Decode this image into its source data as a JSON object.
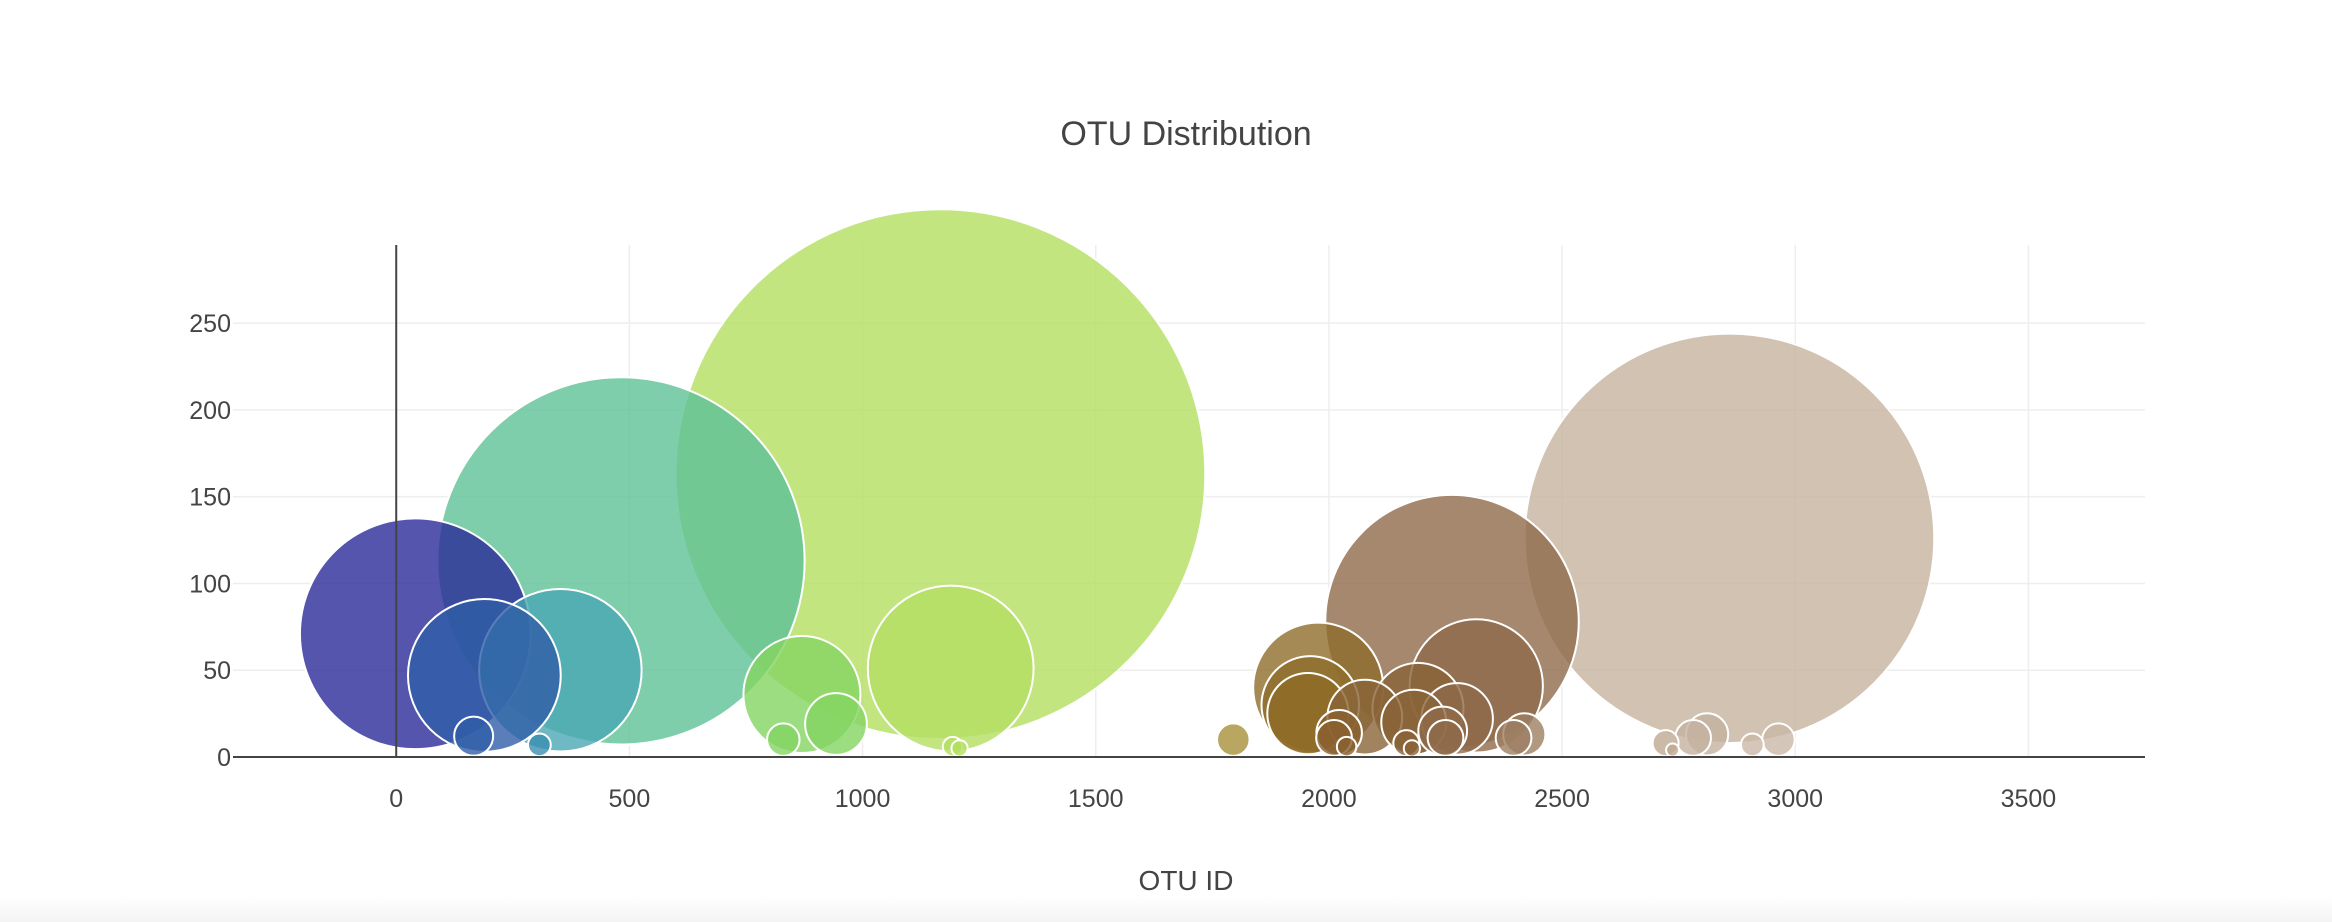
{
  "chart_data": {
    "type": "scatter",
    "marker_mode": "bubble",
    "title": "OTU Distribution",
    "xlabel": "OTU ID",
    "ylabel": "",
    "xlim": [
      -350,
      3750
    ],
    "ylim": [
      0,
      295
    ],
    "xticks": [
      0,
      500,
      1000,
      1500,
      2000,
      2500,
      3000,
      3500
    ],
    "yticks": [
      0,
      50,
      100,
      150,
      200,
      250
    ],
    "grid": true,
    "legend": "none",
    "colorscale": "Earth",
    "series": [
      {
        "points": [
          {
            "x": 41,
            "y": 71,
            "size": 71,
            "color": "#2a2a98"
          },
          {
            "x": 189,
            "y": 47,
            "size": 47,
            "color": "#2f5ea8"
          },
          {
            "x": 166,
            "y": 12,
            "size": 12,
            "color": "#2f5ea8"
          },
          {
            "x": 307,
            "y": 7,
            "size": 7,
            "color": "#3a8fb0"
          },
          {
            "x": 352,
            "y": 50,
            "size": 50,
            "color": "#4aa8b4"
          },
          {
            "x": 482,
            "y": 113,
            "size": 113,
            "color": "#5ec096"
          },
          {
            "x": 870,
            "y": 36,
            "size": 36,
            "color": "#84d561"
          },
          {
            "x": 943,
            "y": 19,
            "size": 19,
            "color": "#84d561"
          },
          {
            "x": 830,
            "y": 10,
            "size": 10,
            "color": "#84d561"
          },
          {
            "x": 1167,
            "y": 163,
            "size": 163,
            "color": "#b3de60"
          },
          {
            "x": 1189,
            "y": 51,
            "size": 51,
            "color": "#b3de60"
          },
          {
            "x": 1193,
            "y": 6,
            "size": 6,
            "color": "#b3de60"
          },
          {
            "x": 1208,
            "y": 5,
            "size": 5,
            "color": "#b3de60"
          },
          {
            "x": 1795,
            "y": 10,
            "size": 10,
            "color": "#a79038"
          },
          {
            "x": 1977,
            "y": 40,
            "size": 40,
            "color": "#8f6d2c"
          },
          {
            "x": 1960,
            "y": 30,
            "size": 30,
            "color": "#8f6d2c"
          },
          {
            "x": 1955,
            "y": 25,
            "size": 25,
            "color": "#8f6b26"
          },
          {
            "x": 2022,
            "y": 14,
            "size": 14,
            "color": "#8a6030"
          },
          {
            "x": 2011,
            "y": 11,
            "size": 11,
            "color": "#8a6030"
          },
          {
            "x": 2038,
            "y": 6,
            "size": 6,
            "color": "#8a6030"
          },
          {
            "x": 2077,
            "y": 23,
            "size": 23,
            "color": "#8a6438"
          },
          {
            "x": 2191,
            "y": 28,
            "size": 28,
            "color": "#8a6438"
          },
          {
            "x": 2182,
            "y": 20,
            "size": 20,
            "color": "#8a6438"
          },
          {
            "x": 2166,
            "y": 8,
            "size": 8,
            "color": "#8a6438"
          },
          {
            "x": 2178,
            "y": 5,
            "size": 5,
            "color": "#8a6438"
          },
          {
            "x": 2264,
            "y": 78,
            "size": 78,
            "color": "#8e6a4a"
          },
          {
            "x": 2316,
            "y": 41,
            "size": 41,
            "color": "#8e6a4a"
          },
          {
            "x": 2275,
            "y": 22,
            "size": 22,
            "color": "#8e6a4a"
          },
          {
            "x": 2244,
            "y": 15,
            "size": 15,
            "color": "#8e6a4a"
          },
          {
            "x": 2250,
            "y": 11,
            "size": 11,
            "color": "#8e6a4a"
          },
          {
            "x": 2396,
            "y": 11,
            "size": 11,
            "color": "#9c7e62"
          },
          {
            "x": 2419,
            "y": 13,
            "size": 13,
            "color": "#9c7e62"
          },
          {
            "x": 2722,
            "y": 8,
            "size": 8,
            "color": "#bfa993"
          },
          {
            "x": 2737,
            "y": 4,
            "size": 4,
            "color": "#bfa993"
          },
          {
            "x": 2781,
            "y": 11,
            "size": 11,
            "color": "#c4b2a0"
          },
          {
            "x": 2811,
            "y": 13,
            "size": 13,
            "color": "#c4b2a0"
          },
          {
            "x": 2859,
            "y": 126,
            "size": 126,
            "color": "#c5b39e"
          },
          {
            "x": 2908,
            "y": 7,
            "size": 7,
            "color": "#c9b8a6"
          },
          {
            "x": 2964,
            "y": 10,
            "size": 10,
            "color": "#c9b8a6"
          }
        ]
      }
    ]
  }
}
